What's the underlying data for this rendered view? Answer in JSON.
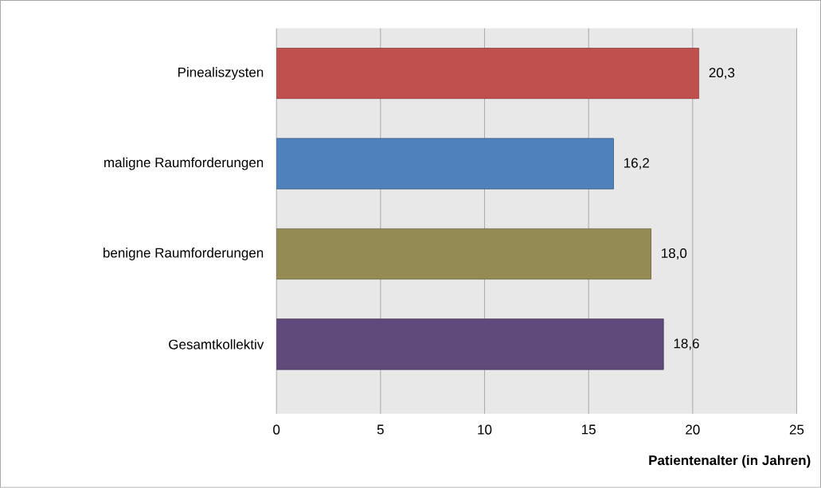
{
  "chart_data": {
    "type": "bar",
    "orientation": "horizontal",
    "xlabel": "Patientenalter (in Jahren)",
    "categories": [
      "Pinealiszysten",
      "maligne Raumforderungen",
      "benigne Raumforderungen",
      "Gesamtkollektiv"
    ],
    "values": [
      20.3,
      16.2,
      18.0,
      18.6
    ],
    "colors": [
      "#c0504d",
      "#4f81bd",
      "#948a54",
      "#604a7b"
    ],
    "value_labels": [
      "20,3",
      "16,2",
      "18,0",
      "18,6"
    ],
    "xlim": [
      0,
      25
    ],
    "xticks": [
      0,
      5,
      10,
      15,
      20,
      25
    ],
    "grid": "x"
  }
}
